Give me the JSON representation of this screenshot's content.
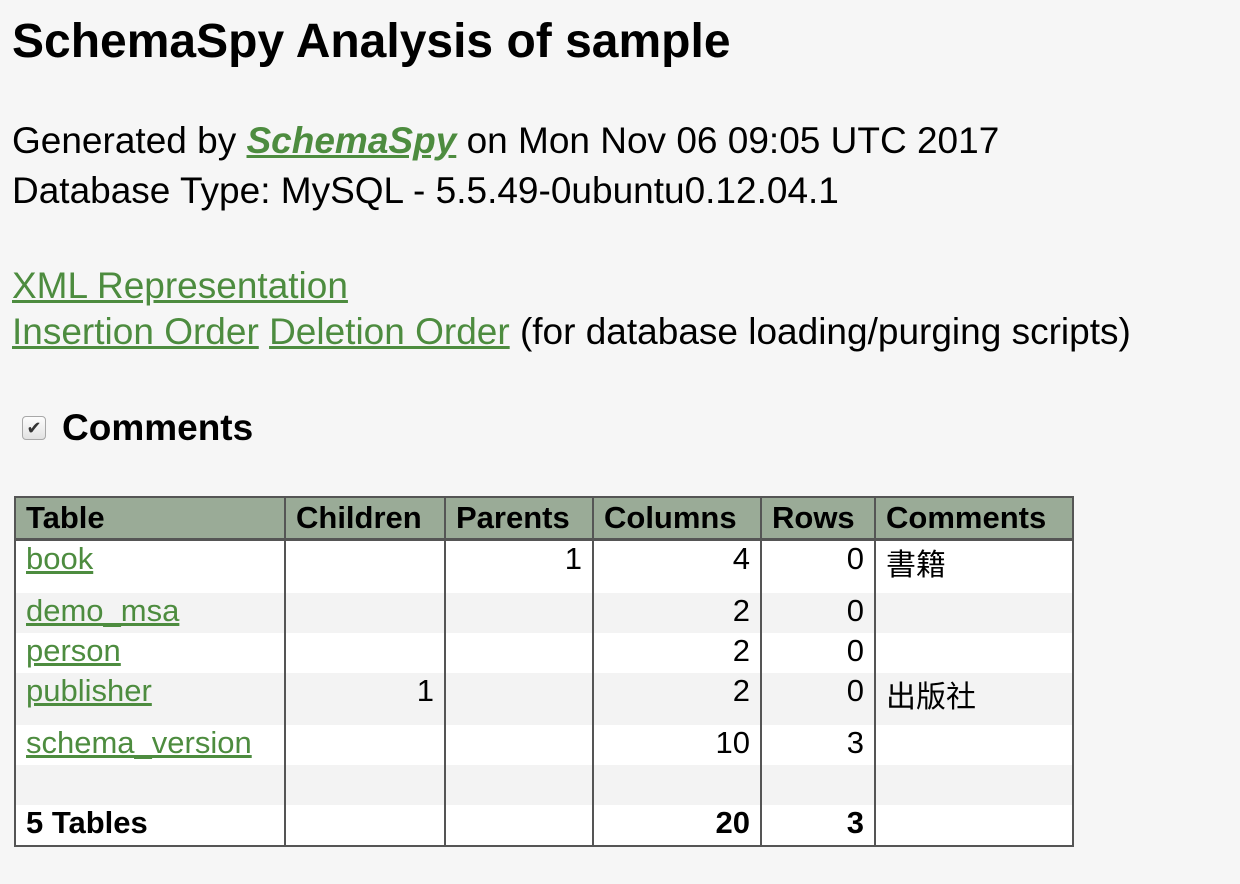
{
  "header": {
    "title": "SchemaSpy Analysis of sample",
    "generated_prefix": "Generated by",
    "generator_link": "SchemaSpy",
    "generated_suffix": "on Mon Nov 06 09:05 UTC 2017",
    "database_type": "Database Type: MySQL - 5.5.49-0ubuntu0.12.04.1"
  },
  "links": {
    "xml": "XML Representation",
    "insertion": "Insertion Order",
    "deletion": "Deletion Order",
    "note": "(for database loading/purging scripts)"
  },
  "comments_toggle": {
    "label": "Comments",
    "checked": true
  },
  "table": {
    "headers": [
      "Table",
      "Children",
      "Parents",
      "Columns",
      "Rows",
      "Comments"
    ],
    "rows": [
      {
        "name": "book",
        "children": "",
        "parents": "1",
        "columns": "4",
        "rows": "0",
        "comments": "書籍"
      },
      {
        "name": "demo_msa",
        "children": "",
        "parents": "",
        "columns": "2",
        "rows": "0",
        "comments": ""
      },
      {
        "name": "person",
        "children": "",
        "parents": "",
        "columns": "2",
        "rows": "0",
        "comments": ""
      },
      {
        "name": "publisher",
        "children": "1",
        "parents": "",
        "columns": "2",
        "rows": "0",
        "comments": "出版社"
      },
      {
        "name": "schema_version",
        "children": "",
        "parents": "",
        "columns": "10",
        "rows": "3",
        "comments": ""
      }
    ],
    "totals": {
      "label": "5 Tables",
      "columns": "20",
      "rows": "3"
    }
  },
  "colors": {
    "link": "#4d8c3f",
    "header_bg": "#9aab97",
    "page_bg": "#f6f6f6"
  }
}
